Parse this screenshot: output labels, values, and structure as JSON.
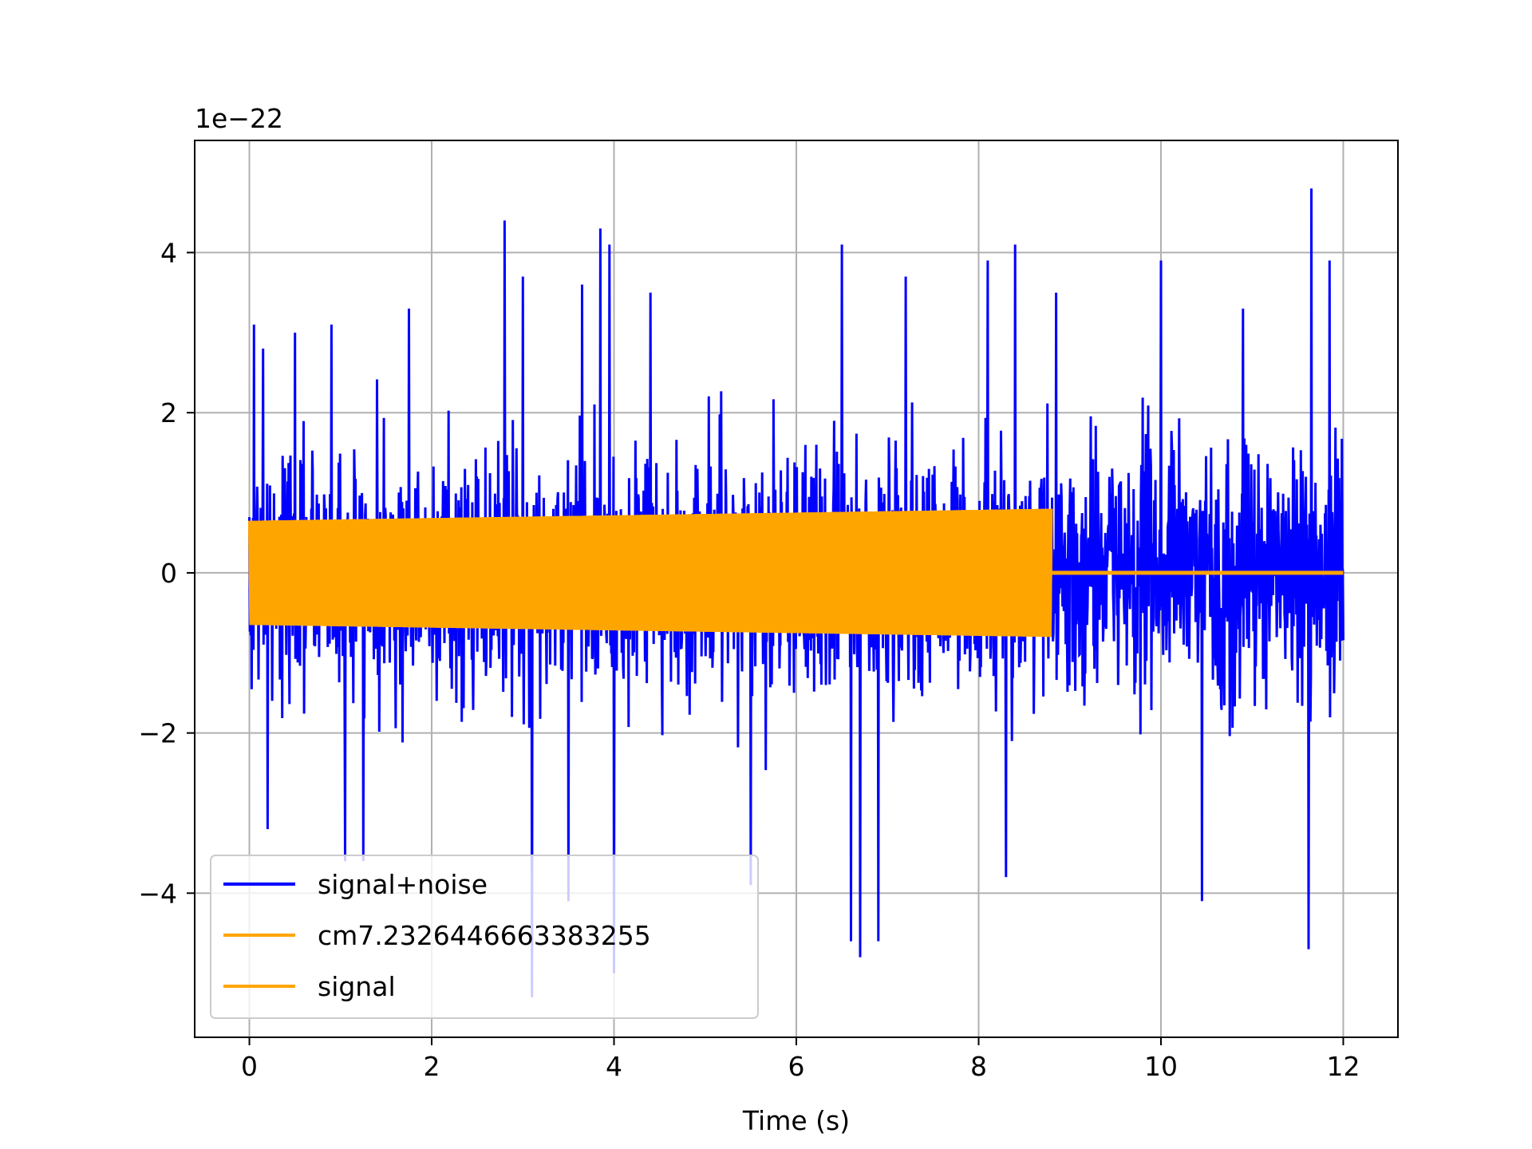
{
  "chart_data": {
    "type": "line",
    "title": "",
    "xlabel": "Time (s)",
    "ylabel": "",
    "y_offset_text": "1e−22",
    "y_scale_factor": 1e-22,
    "xlim": [
      -0.6,
      12.6
    ],
    "ylim": [
      -5.8,
      5.4
    ],
    "x_ticks": [
      0,
      2,
      4,
      6,
      8,
      10,
      12
    ],
    "x_tick_labels": [
      "0",
      "2",
      "4",
      "6",
      "8",
      "10",
      "12"
    ],
    "y_ticks": [
      -4,
      -2,
      0,
      2,
      4
    ],
    "y_tick_labels": [
      "−4",
      "−2",
      "0",
      "2",
      "4"
    ],
    "grid": true,
    "legend_position": "lower-left",
    "series": [
      {
        "name": "signal+noise",
        "color": "#0000ff",
        "x_range": [
          0,
          12
        ],
        "typical_envelope": 1.5,
        "peaks": [
          {
            "x": 0.05,
            "y": 3.1
          },
          {
            "x": 0.15,
            "y": 2.8
          },
          {
            "x": 0.2,
            "y": -3.2
          },
          {
            "x": 0.5,
            "y": 3.0
          },
          {
            "x": 0.9,
            "y": 3.1
          },
          {
            "x": 1.05,
            "y": -3.6
          },
          {
            "x": 1.25,
            "y": -3.6
          },
          {
            "x": 1.75,
            "y": 3.3
          },
          {
            "x": 2.8,
            "y": 4.4
          },
          {
            "x": 3.0,
            "y": 3.7
          },
          {
            "x": 3.1,
            "y": -5.3
          },
          {
            "x": 3.5,
            "y": -4.1
          },
          {
            "x": 3.65,
            "y": 3.6
          },
          {
            "x": 3.85,
            "y": 4.3
          },
          {
            "x": 3.95,
            "y": 4.1
          },
          {
            "x": 4.0,
            "y": -5.0
          },
          {
            "x": 4.4,
            "y": 3.5
          },
          {
            "x": 5.5,
            "y": -3.9
          },
          {
            "x": 6.5,
            "y": 4.1
          },
          {
            "x": 6.6,
            "y": -4.6
          },
          {
            "x": 6.7,
            "y": -4.8
          },
          {
            "x": 6.9,
            "y": -4.6
          },
          {
            "x": 7.2,
            "y": 3.7
          },
          {
            "x": 8.1,
            "y": 3.9
          },
          {
            "x": 8.3,
            "y": -3.8
          },
          {
            "x": 8.4,
            "y": 4.1
          },
          {
            "x": 8.85,
            "y": 3.5
          },
          {
            "x": 10.0,
            "y": 3.9
          },
          {
            "x": 10.45,
            "y": -4.1
          },
          {
            "x": 10.9,
            "y": 3.3
          },
          {
            "x": 11.65,
            "y": 4.8
          },
          {
            "x": 11.62,
            "y": -4.7
          },
          {
            "x": 11.85,
            "y": 3.9
          }
        ]
      },
      {
        "name": "cm7.2326446663383255",
        "color": "#ffa500",
        "x_range": [
          0,
          8.8
        ],
        "amplitude_start": 0.65,
        "amplitude_end": 0.8,
        "after_end_value": 0
      },
      {
        "name": "signal",
        "color": "#ffa500",
        "x_range": [
          0,
          12
        ],
        "amplitude_start": 0.65,
        "amplitude_end": 0.8,
        "active_until": 8.8,
        "after_end_value": 0
      }
    ]
  }
}
